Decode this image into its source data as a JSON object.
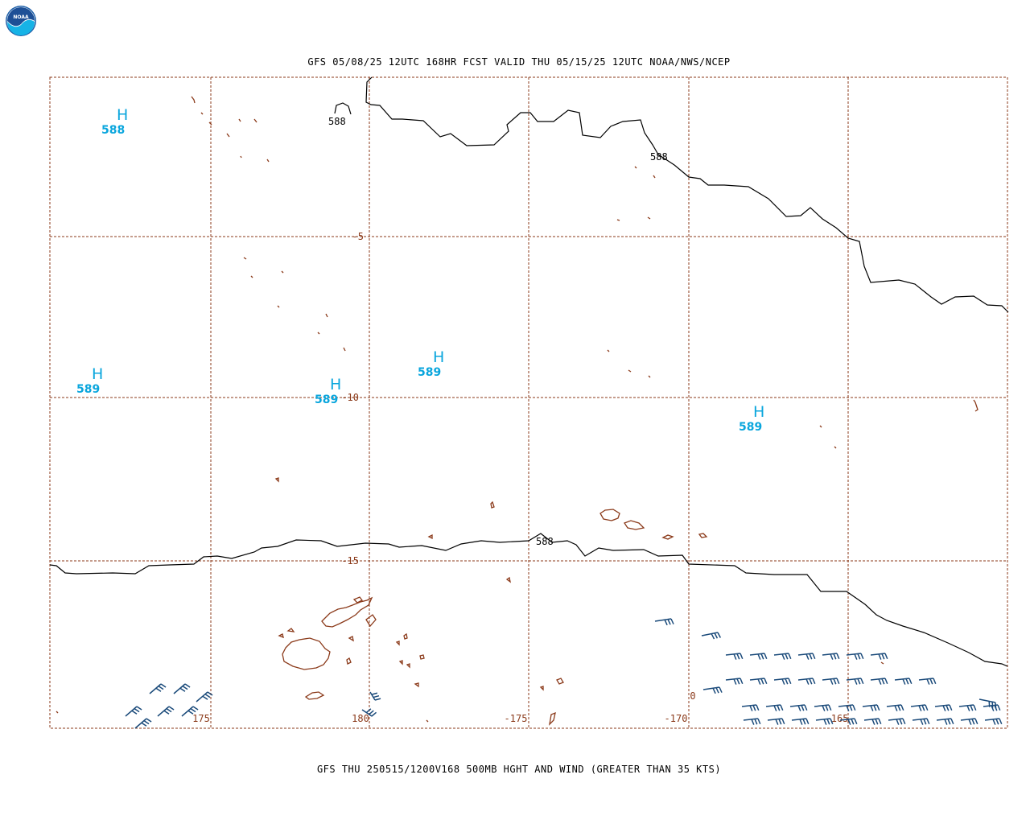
{
  "header": {
    "title": "GFS 05/08/25 12UTC 168HR FCST VALID THU 05/15/25 12UTC NOAA/NWS/NCEP",
    "logo_text": "NOAA"
  },
  "footer": {
    "title": "GFS THU 250515/1200V168 500MB HGHT AND WIND (GREATER THAN 35 KTS)"
  },
  "colors": {
    "grid": "#8b3a1a",
    "coast": "#8b3a1a",
    "contour": "#000000",
    "high": "#0aa6dd",
    "wind": "#1a4a7a"
  },
  "map": {
    "lat_labels": [
      {
        "text": "-5",
        "lat": -5
      },
      {
        "text": "-10",
        "lat": -10
      },
      {
        "text": "-15",
        "lat": -15
      }
    ],
    "lon_labels": [
      {
        "text": "175",
        "lon": 175
      },
      {
        "text": "180",
        "lon": 180
      },
      {
        "text": "-175",
        "lon": -175
      },
      {
        "text": "-170",
        "lon": -170
      },
      {
        "text": "-165",
        "lon": -165
      }
    ],
    "contour_labels": [
      {
        "text": "588",
        "id": "a"
      },
      {
        "text": "588",
        "id": "b"
      },
      {
        "text": "588",
        "id": "c"
      }
    ],
    "highs": [
      {
        "letter": "H",
        "value": "588"
      },
      {
        "letter": "H",
        "value": "589"
      },
      {
        "letter": "H",
        "value": "589"
      },
      {
        "letter": "H",
        "value": "589"
      },
      {
        "letter": "H",
        "value": "589"
      }
    ],
    "edge_fragment": "0"
  }
}
